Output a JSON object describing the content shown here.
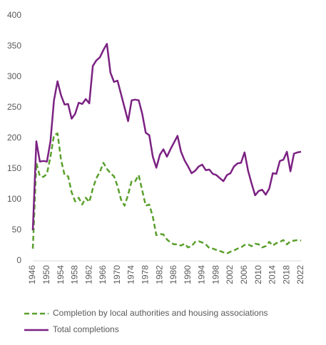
{
  "chart_data": {
    "type": "line",
    "x": [
      1946,
      1947,
      1948,
      1949,
      1950,
      1951,
      1952,
      1953,
      1954,
      1955,
      1956,
      1957,
      1958,
      1959,
      1960,
      1961,
      1962,
      1963,
      1964,
      1965,
      1966,
      1967,
      1968,
      1969,
      1970,
      1971,
      1972,
      1973,
      1974,
      1975,
      1976,
      1977,
      1978,
      1979,
      1980,
      1981,
      1982,
      1983,
      1984,
      1985,
      1986,
      1987,
      1988,
      1989,
      1990,
      1991,
      1992,
      1993,
      1994,
      1995,
      1996,
      1997,
      1998,
      1999,
      2000,
      2001,
      2002,
      2003,
      2004,
      2005,
      2006,
      2007,
      2008,
      2009,
      2010,
      2011,
      2012,
      2013,
      2014,
      2015,
      2016,
      2017,
      2018,
      2019,
      2020,
      2021,
      2022
    ],
    "series": [
      {
        "name": "Completion by local authorities and housing associations",
        "color": "#5aa02c",
        "dashed": true,
        "values": [
          20,
          160,
          138,
          137,
          142,
          170,
          205,
          208,
          165,
          140,
          138,
          112,
          97,
          103,
          92,
          103,
          96,
          118,
          135,
          145,
          160,
          150,
          143,
          138,
          122,
          100,
          90,
          108,
          130,
          130,
          140,
          115,
          90,
          92,
          72,
          42,
          44,
          43,
          35,
          30,
          27,
          27,
          25,
          28,
          22,
          24,
          31,
          32,
          30,
          27,
          21,
          20,
          18,
          16,
          14,
          12,
          15,
          17,
          20,
          22,
          26,
          27,
          24,
          28,
          27,
          22,
          24,
          31,
          25,
          29,
          31,
          34,
          27,
          32,
          33,
          34,
          33
        ]
      },
      {
        "name": "Total completions",
        "color": "#7b2182",
        "dashed": false,
        "values": [
          50,
          195,
          162,
          163,
          162,
          195,
          262,
          293,
          270,
          255,
          256,
          232,
          240,
          258,
          256,
          264,
          257,
          318,
          327,
          332,
          344,
          354,
          307,
          292,
          294,
          272,
          250,
          228,
          262,
          263,
          262,
          240,
          209,
          205,
          170,
          152,
          173,
          182,
          170,
          182,
          193,
          204,
          178,
          164,
          154,
          143,
          147,
          154,
          157,
          148,
          149,
          142,
          140,
          135,
          130,
          140,
          143,
          154,
          159,
          160,
          177,
          147,
          126,
          107,
          114,
          116,
          108,
          118,
          143,
          142,
          163,
          165,
          178,
          146,
          175,
          177,
          178
        ]
      }
    ],
    "xlim": [
      1946,
      2022
    ],
    "xticks": [
      1946,
      1950,
      1954,
      1958,
      1962,
      1966,
      1970,
      1974,
      1978,
      1982,
      1986,
      1990,
      1994,
      1998,
      2002,
      2006,
      2010,
      2014,
      2018,
      2022
    ],
    "ylim": [
      0,
      400
    ],
    "yticks": [
      0,
      50,
      100,
      150,
      200,
      250,
      300,
      350,
      400
    ]
  }
}
